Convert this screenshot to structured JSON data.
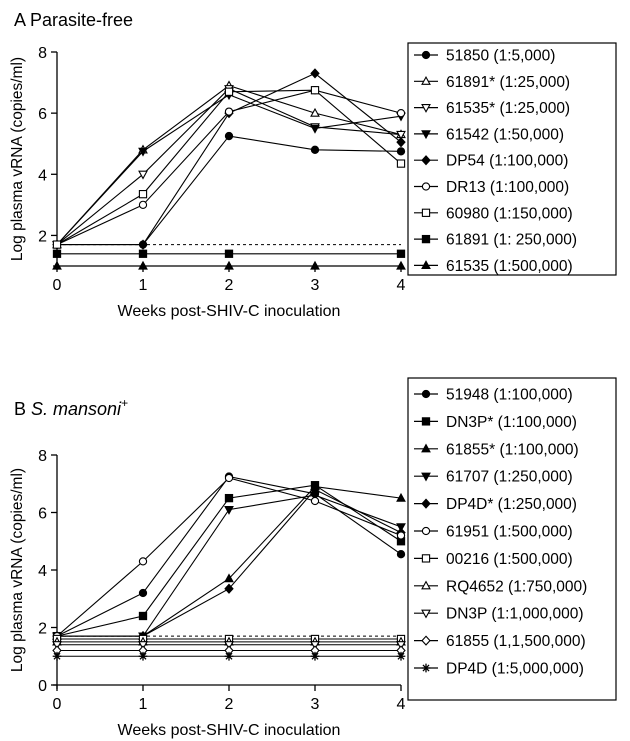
{
  "chart_data": [
    {
      "type": "line",
      "panel_letter": "A",
      "title": "Parasite-free",
      "title_italic": false,
      "title_sup": "",
      "xlabel": "Weeks post-SHIV-C inoculation",
      "ylabel": "Log plasma vRNA (copies/ml)",
      "xlim": [
        0,
        4
      ],
      "ylim": [
        1,
        8
      ],
      "x_ticks": [
        0,
        1,
        2,
        3,
        4
      ],
      "y_ticks": [
        2,
        4,
        6,
        8
      ],
      "x": [
        0,
        1,
        2,
        3,
        4
      ],
      "threshold": 1.7,
      "grid": false,
      "legend_position": "right",
      "series": [
        {
          "name": "51850 (1:5,000)",
          "marker": "circle",
          "fill": "black",
          "values": [
            1.7,
            1.7,
            5.25,
            4.8,
            4.75
          ]
        },
        {
          "name": "61891* (1:25,000)",
          "marker": "triangle-up",
          "fill": "white",
          "values": [
            1.7,
            4.8,
            6.9,
            6.0,
            5.3
          ]
        },
        {
          "name": "61535* (1:25,000)",
          "marker": "triangle-down",
          "fill": "white",
          "values": [
            1.7,
            4.0,
            6.8,
            5.55,
            5.3
          ]
        },
        {
          "name": "61542 (1:50,000)",
          "marker": "triangle-down",
          "fill": "black",
          "values": [
            1.7,
            4.75,
            6.6,
            5.5,
            5.9
          ]
        },
        {
          "name": "DP54  (1:100,000)",
          "marker": "diamond",
          "fill": "black",
          "values": [
            1.7,
            1.7,
            6.0,
            7.3,
            5.05
          ]
        },
        {
          "name": "DR13  (1:100,000)",
          "marker": "circle",
          "fill": "white",
          "values": [
            1.7,
            3.0,
            6.05,
            6.75,
            6.0
          ]
        },
        {
          "name": "60980  (1:150,000)",
          "marker": "square",
          "fill": "white",
          "values": [
            1.7,
            3.35,
            6.7,
            6.75,
            4.35
          ]
        },
        {
          "name": "61891 (1: 250,000)",
          "marker": "square",
          "fill": "black",
          "values": [
            1.4,
            1.4,
            1.4,
            null,
            1.4
          ]
        },
        {
          "name": "61535 (1:500,000)",
          "marker": "triangle-up",
          "fill": "black",
          "values": [
            1.0,
            1.0,
            1.0,
            1.0,
            1.0
          ]
        }
      ]
    },
    {
      "type": "line",
      "panel_letter": "B",
      "title": "S. mansoni",
      "title_italic": true,
      "title_sup": "+",
      "xlabel": "Weeks post-SHIV-C inoculation",
      "ylabel": "Log plasma vRNA (copies/ml)",
      "xlim": [
        0,
        4
      ],
      "ylim": [
        0,
        8
      ],
      "x_ticks": [
        0,
        1,
        2,
        3,
        4
      ],
      "y_ticks": [
        0,
        2,
        4,
        6,
        8
      ],
      "x": [
        0,
        1,
        2,
        3,
        4
      ],
      "threshold": 1.7,
      "grid": false,
      "legend_position": "right",
      "series": [
        {
          "name": "51948 (1:100,000)",
          "marker": "circle",
          "fill": "black",
          "values": [
            1.7,
            3.2,
            7.25,
            6.65,
            4.55
          ]
        },
        {
          "name": "DN3P* (1:100,000)",
          "marker": "square",
          "fill": "black",
          "values": [
            1.7,
            2.4,
            6.5,
            6.95,
            5.0
          ]
        },
        {
          "name": "61855* (1:100,000)",
          "marker": "triangle-up",
          "fill": "black",
          "values": [
            1.7,
            1.7,
            3.7,
            6.9,
            6.5
          ]
        },
        {
          "name": "61707 (1:250,000)",
          "marker": "triangle-down",
          "fill": "black",
          "values": [
            1.7,
            1.7,
            6.1,
            6.6,
            5.5
          ]
        },
        {
          "name": "DP4D* (1:250,000)",
          "marker": "diamond",
          "fill": "black",
          "values": [
            1.7,
            1.7,
            3.35,
            6.8,
            5.3
          ]
        },
        {
          "name": "61951 (1:500,000)",
          "marker": "circle",
          "fill": "white",
          "values": [
            1.7,
            4.3,
            7.2,
            6.4,
            5.2
          ]
        },
        {
          "name": "00216 (1:500,000)",
          "marker": "square",
          "fill": "white",
          "values": [
            1.6,
            1.6,
            1.6,
            1.6,
            1.6
          ]
        },
        {
          "name": "RQ4652 (1:750,000)",
          "marker": "triangle-up",
          "fill": "white",
          "values": [
            1.5,
            1.5,
            1.5,
            1.5,
            1.5
          ]
        },
        {
          "name": "DN3P (1:1,000,000)",
          "marker": "triangle-down",
          "fill": "white",
          "values": [
            1.4,
            1.4,
            1.4,
            1.4,
            1.4
          ]
        },
        {
          "name": "61855 (1,1,500,000)",
          "marker": "diamond",
          "fill": "white",
          "values": [
            1.2,
            1.2,
            1.2,
            1.2,
            1.2
          ]
        },
        {
          "name": "DP4D (1:5,000,000)",
          "marker": "star",
          "fill": "black",
          "values": [
            1.0,
            1.0,
            1.0,
            1.0,
            1.0
          ]
        }
      ]
    }
  ]
}
